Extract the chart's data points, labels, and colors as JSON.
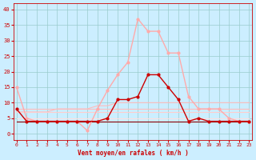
{
  "xlabel": "Vent moyen/en rafales ( km/h )",
  "x": [
    0,
    1,
    2,
    3,
    4,
    5,
    6,
    7,
    8,
    9,
    10,
    11,
    12,
    13,
    14,
    15,
    16,
    17,
    18,
    19,
    20,
    21,
    22,
    23
  ],
  "line_gust": [
    15,
    5,
    4,
    4,
    4,
    4,
    4,
    1,
    8,
    14,
    19,
    23,
    37,
    33,
    33,
    26,
    26,
    12,
    8,
    8,
    8,
    5,
    4,
    4
  ],
  "line_avg": [
    8,
    4,
    4,
    4,
    4,
    4,
    4,
    4,
    4,
    5,
    11,
    11,
    12,
    19,
    19,
    15,
    11,
    4,
    5,
    4,
    4,
    4,
    4,
    4
  ],
  "line_trend": [
    7,
    7,
    7,
    7,
    8,
    8,
    8,
    8,
    9,
    9,
    10,
    10,
    10,
    10,
    10,
    10,
    10,
    10,
    10,
    10,
    10,
    10,
    10,
    10
  ],
  "line_flat1": [
    8,
    8,
    8,
    8,
    8,
    8,
    8,
    8,
    8,
    8,
    8,
    8,
    8,
    8,
    8,
    8,
    8,
    8,
    8,
    8,
    8,
    8,
    8,
    8
  ],
  "line_flat2": [
    7,
    7,
    7,
    7,
    7,
    7,
    7,
    7,
    7,
    7,
    7,
    7,
    7,
    7,
    7,
    7,
    7,
    7,
    7,
    7,
    7,
    7,
    7,
    7
  ],
  "line_flat3": [
    5,
    5,
    5,
    5,
    5,
    5,
    5,
    5,
    5,
    5,
    5,
    5,
    5,
    5,
    5,
    5,
    5,
    5,
    5,
    5,
    5,
    5,
    5,
    5
  ],
  "line_dark": [
    4,
    4,
    4,
    4,
    4,
    4,
    4,
    4,
    4,
    4,
    4,
    4,
    4,
    4,
    4,
    4,
    4,
    4,
    4,
    4,
    4,
    4,
    4,
    4
  ],
  "color_gust": "#ffaaaa",
  "color_avg": "#cc0000",
  "color_trend": "#ffbbbb",
  "color_flat1": "#ffbbbb",
  "color_flat2": "#ffcccc",
  "color_flat3": "#ffdddd",
  "color_dark": "#880000",
  "bg_color": "#cceeff",
  "grid_color": "#99cccc",
  "ylim": [
    -2,
    42
  ],
  "xlim": [
    -0.3,
    23.3
  ]
}
